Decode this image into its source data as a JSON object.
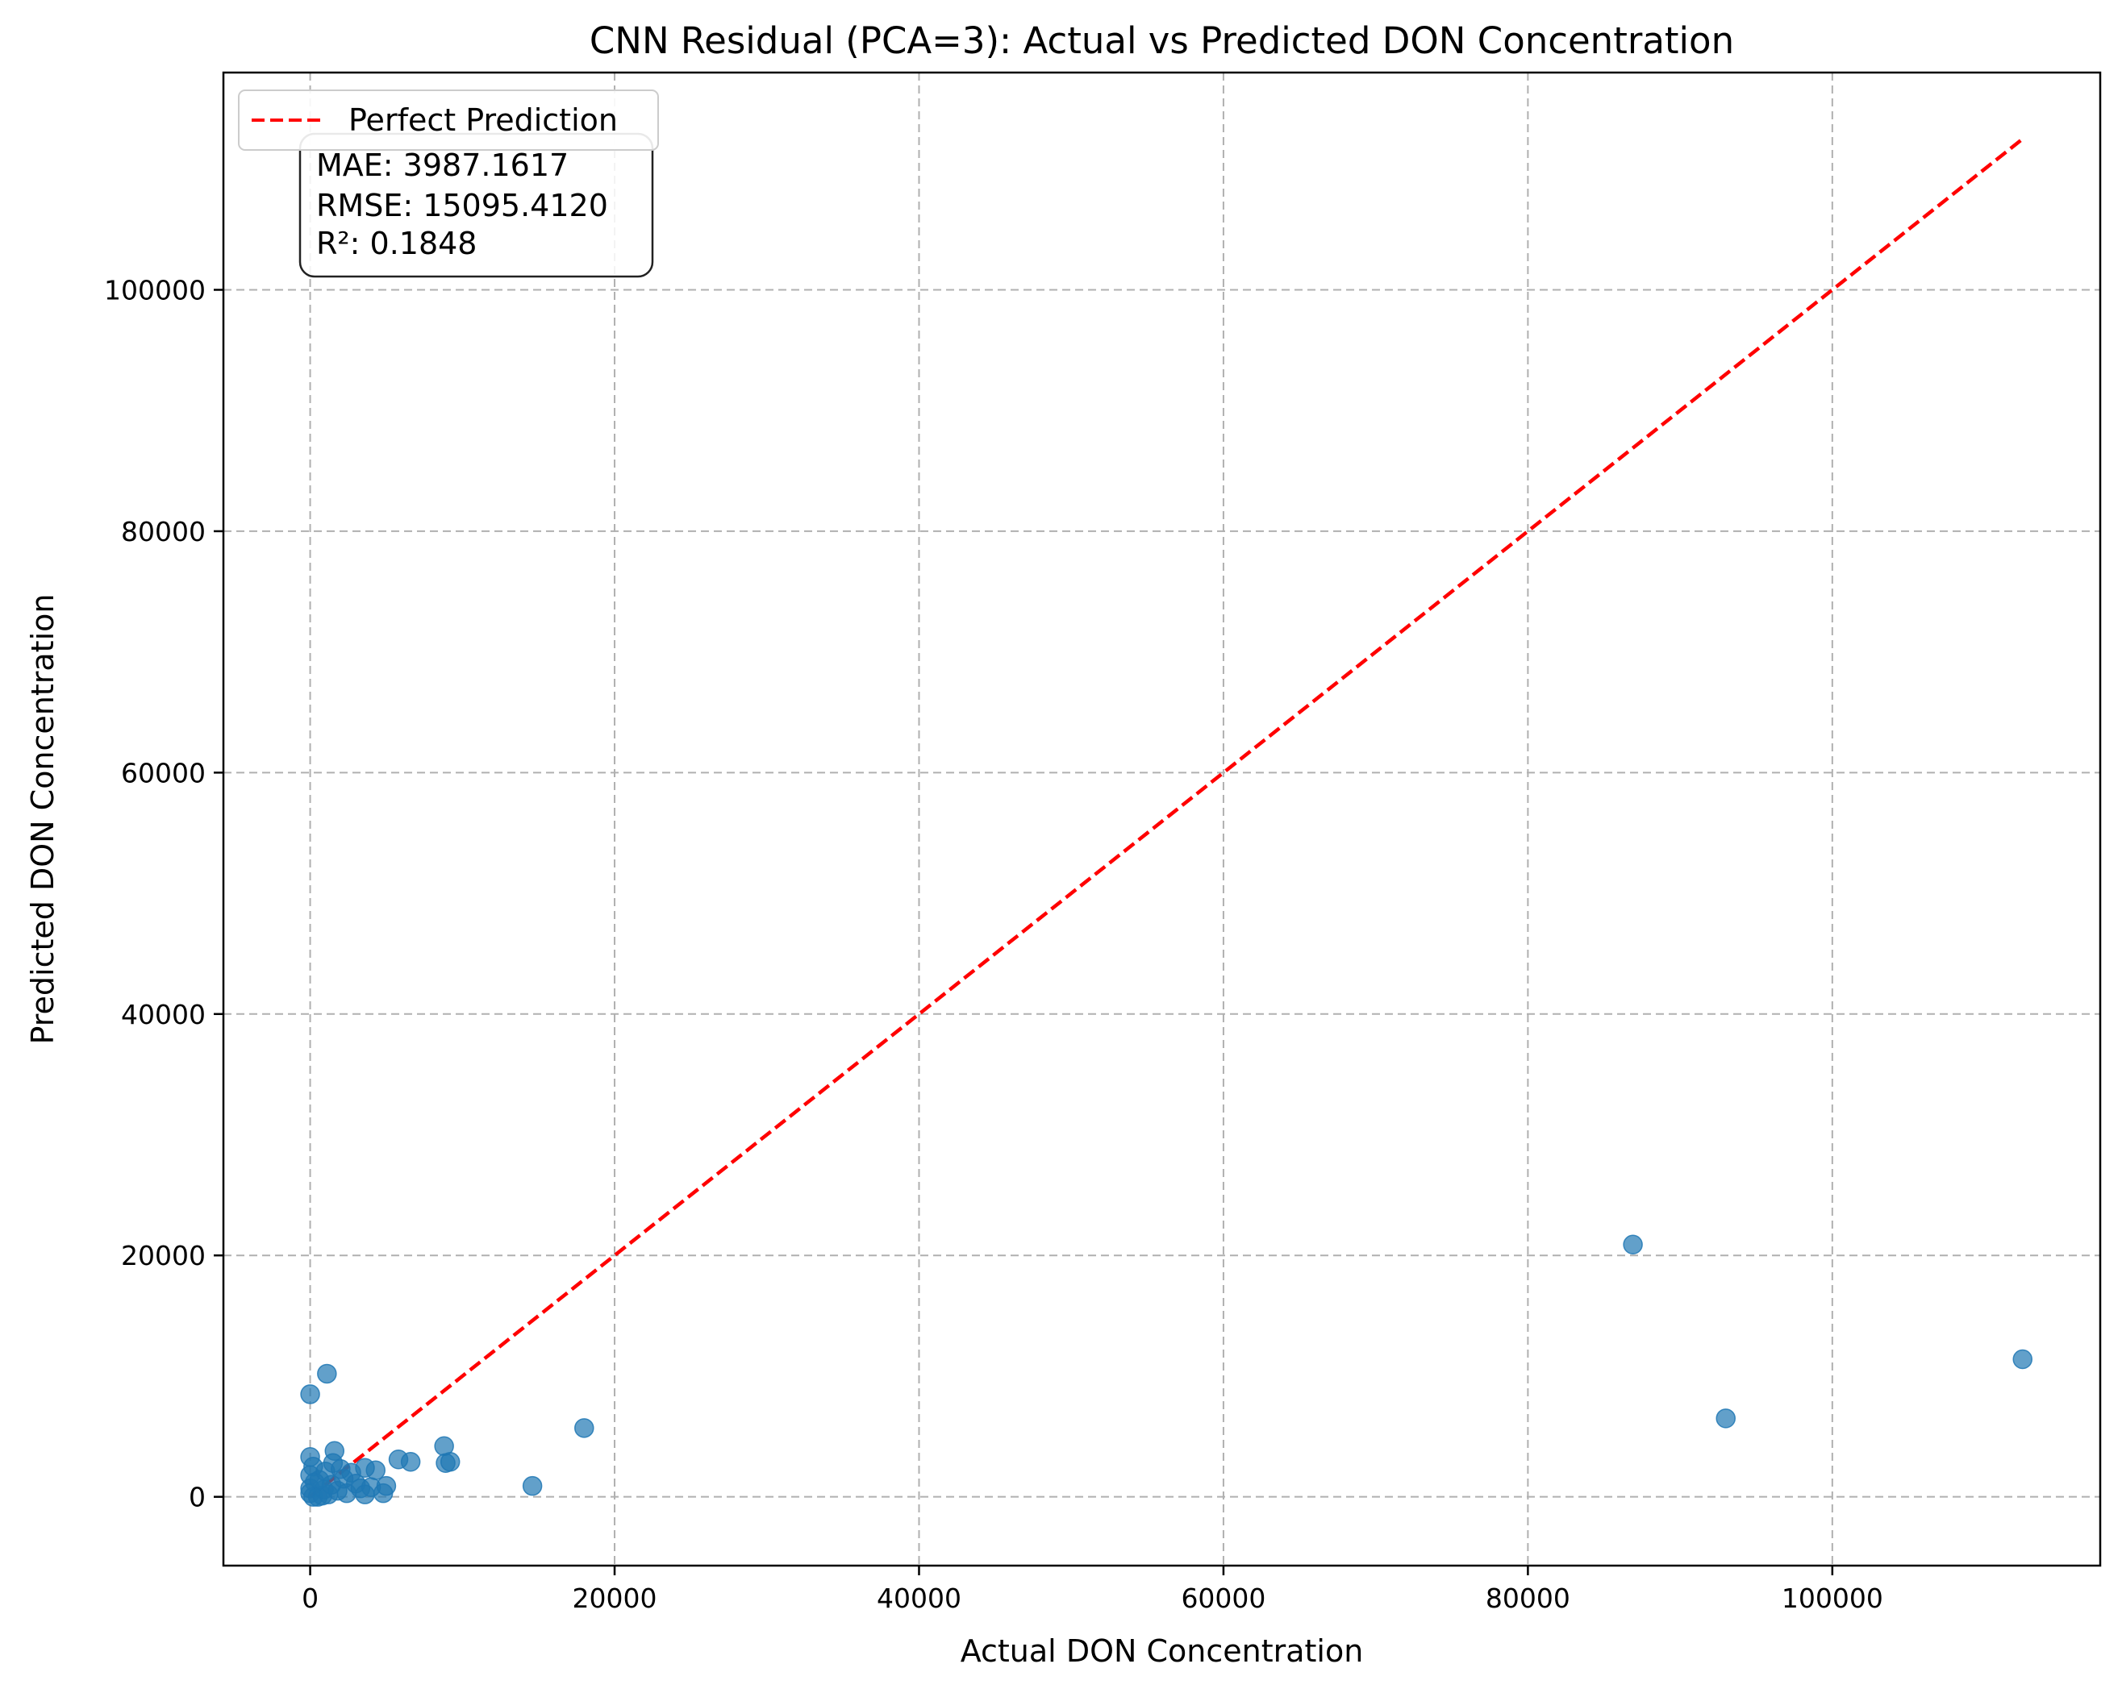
{
  "chart_data": {
    "type": "scatter",
    "title": "CNN Residual (PCA=3): Actual vs Predicted DON Concentration",
    "xlabel": "Actual DON Concentration",
    "ylabel": "Predicted DON Concentration",
    "xlim": [
      -5700,
      117600
    ],
    "ylim": [
      -5700,
      118000
    ],
    "xticks": [
      0,
      20000,
      40000,
      60000,
      80000,
      100000
    ],
    "yticks": [
      0,
      20000,
      40000,
      60000,
      80000,
      100000
    ],
    "grid": true,
    "legend": {
      "position": "top-left",
      "entries": [
        "Perfect Prediction"
      ]
    },
    "reference_line": {
      "name": "Perfect Prediction",
      "x": [
        0,
        112500
      ],
      "y": [
        0,
        112500
      ],
      "color": "#ff0000",
      "style": "dashed"
    },
    "stats": {
      "lines": [
        "MAE: 3987.1617",
        "RMSE: 15095.4120",
        "R²: 0.1848"
      ]
    },
    "colors": {
      "points": "#1f77b4",
      "line": "#ff0000",
      "grid": "#b0b0b0"
    },
    "series": [
      {
        "name": "Predictions",
        "points": [
          [
            0,
            8500
          ],
          [
            1100,
            10200
          ],
          [
            1600,
            3800
          ],
          [
            0,
            3300
          ],
          [
            200,
            2500
          ],
          [
            0,
            1800
          ],
          [
            300,
            1200
          ],
          [
            0,
            700
          ],
          [
            0,
            300
          ],
          [
            200,
            0
          ],
          [
            500,
            0
          ],
          [
            800,
            100
          ],
          [
            900,
            600
          ],
          [
            600,
            1400
          ],
          [
            1000,
            2100
          ],
          [
            1500,
            2800
          ],
          [
            1200,
            200
          ],
          [
            1400,
            1000
          ],
          [
            1800,
            500
          ],
          [
            2000,
            2300
          ],
          [
            2200,
            1500
          ],
          [
            2400,
            300
          ],
          [
            2700,
            2000
          ],
          [
            3000,
            1100
          ],
          [
            3300,
            700
          ],
          [
            3600,
            200
          ],
          [
            3600,
            2400
          ],
          [
            4000,
            800
          ],
          [
            4300,
            2200
          ],
          [
            4800,
            300
          ],
          [
            5000,
            900
          ],
          [
            5800,
            3100
          ],
          [
            6600,
            2900
          ],
          [
            8800,
            4200
          ],
          [
            8900,
            2800
          ],
          [
            9200,
            2900
          ],
          [
            14600,
            900
          ],
          [
            18000,
            5700
          ],
          [
            86900,
            20900
          ],
          [
            93000,
            6500
          ],
          [
            112500,
            11400
          ]
        ]
      }
    ]
  }
}
